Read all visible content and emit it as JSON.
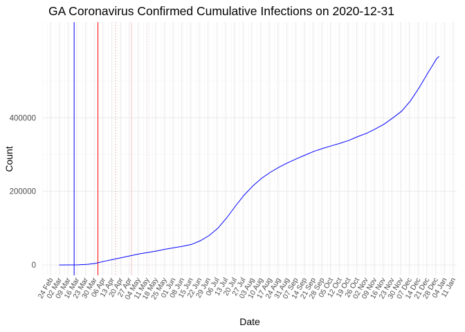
{
  "chart_data": {
    "type": "line",
    "title": "GA Coronavirus Confirmed Cumulative Infections on 2020-12-31",
    "xlabel": "Date",
    "ylabel": "Count",
    "x_axis_type": "date",
    "xlim": [
      "2020-02-18",
      "2021-01-14"
    ],
    "ylim": [
      -28000,
      660000
    ],
    "y_ticks": [
      0,
      200000,
      400000
    ],
    "y_tick_labels": [
      "0",
      "200000",
      "400000"
    ],
    "x_ticks": [
      "2020-02-24",
      "2020-03-02",
      "2020-03-09",
      "2020-03-16",
      "2020-03-23",
      "2020-03-30",
      "2020-04-06",
      "2020-04-13",
      "2020-04-20",
      "2020-04-27",
      "2020-05-04",
      "2020-05-11",
      "2020-05-18",
      "2020-05-25",
      "2020-06-01",
      "2020-06-08",
      "2020-06-15",
      "2020-06-22",
      "2020-06-29",
      "2020-07-06",
      "2020-07-13",
      "2020-07-20",
      "2020-07-27",
      "2020-08-03",
      "2020-08-10",
      "2020-08-17",
      "2020-08-24",
      "2020-08-31",
      "2020-09-07",
      "2020-09-14",
      "2020-09-21",
      "2020-09-28",
      "2020-10-05",
      "2020-10-12",
      "2020-10-19",
      "2020-10-26",
      "2020-11-02",
      "2020-11-09",
      "2020-11-16",
      "2020-11-23",
      "2020-11-30",
      "2020-12-07",
      "2020-12-14",
      "2020-12-21",
      "2020-12-28",
      "2021-01-04",
      "2021-01-11"
    ],
    "x_tick_labels": [
      "24 Feb",
      "02 Mar",
      "09 Mar",
      "16 Mar",
      "23 Mar",
      "30 Mar",
      "06 Apr",
      "13 Apr",
      "20 Apr",
      "27 Apr",
      "04 May",
      "11 May",
      "18 May",
      "25 May",
      "01 Jun",
      "08 Jun",
      "15 Jun",
      "22 Jun",
      "29 Jun",
      "06 Jul",
      "13 Jul",
      "20 Jul",
      "27 Jul",
      "03 Aug",
      "10 Aug",
      "17 Aug",
      "24 Aug",
      "31 Aug",
      "07 Sep",
      "14 Sep",
      "21 Sep",
      "28 Sep",
      "05 Oct",
      "12 Oct",
      "19 Oct",
      "26 Oct",
      "02 Nov",
      "09 Nov",
      "16 Nov",
      "23 Nov",
      "30 Nov",
      "07 Dec",
      "14 Dec",
      "21 Dec",
      "28 Dec",
      "04 Jan",
      "11 Jan"
    ],
    "grid": true,
    "series": [
      {
        "color": "#0000ff",
        "points": [
          [
            "2020-03-02",
            0
          ],
          [
            "2020-03-10",
            200
          ],
          [
            "2020-03-17",
            400
          ],
          [
            "2020-03-24",
            1500
          ],
          [
            "2020-03-31",
            4500
          ],
          [
            "2020-04-07",
            10000
          ],
          [
            "2020-04-14",
            15000
          ],
          [
            "2020-04-21",
            20000
          ],
          [
            "2020-04-28",
            25000
          ],
          [
            "2020-05-05",
            30000
          ],
          [
            "2020-05-12",
            34000
          ],
          [
            "2020-05-19",
            38000
          ],
          [
            "2020-05-26",
            43000
          ],
          [
            "2020-06-02",
            47000
          ],
          [
            "2020-06-09",
            51000
          ],
          [
            "2020-06-16",
            56000
          ],
          [
            "2020-06-23",
            66000
          ],
          [
            "2020-06-30",
            80000
          ],
          [
            "2020-07-07",
            100000
          ],
          [
            "2020-07-14",
            128000
          ],
          [
            "2020-07-21",
            160000
          ],
          [
            "2020-07-28",
            190000
          ],
          [
            "2020-08-04",
            215000
          ],
          [
            "2020-08-11",
            236000
          ],
          [
            "2020-08-18",
            252000
          ],
          [
            "2020-08-25",
            266000
          ],
          [
            "2020-09-01",
            278000
          ],
          [
            "2020-09-08",
            289000
          ],
          [
            "2020-09-15",
            299000
          ],
          [
            "2020-09-22",
            309000
          ],
          [
            "2020-09-29",
            317000
          ],
          [
            "2020-10-06",
            324000
          ],
          [
            "2020-10-13",
            331000
          ],
          [
            "2020-10-20",
            339000
          ],
          [
            "2020-10-27",
            349000
          ],
          [
            "2020-11-03",
            358000
          ],
          [
            "2020-11-10",
            370000
          ],
          [
            "2020-11-17",
            383000
          ],
          [
            "2020-11-24",
            400000
          ],
          [
            "2020-12-01",
            418000
          ],
          [
            "2020-12-08",
            446000
          ],
          [
            "2020-12-15",
            482000
          ],
          [
            "2020-12-22",
            522000
          ],
          [
            "2020-12-29",
            561000
          ],
          [
            "2020-12-31",
            567000
          ]
        ]
      }
    ],
    "reference_lines": [
      {
        "date": "2020-03-14",
        "color": "#0000ff",
        "style": "solid"
      },
      {
        "date": "2020-04-02",
        "color": "#ff0000",
        "style": "solid"
      },
      {
        "date": "2020-04-16",
        "color": "#e8a0a0",
        "style": "dotted"
      },
      {
        "date": "2020-04-29",
        "color": "#f4c8c8",
        "style": "solid"
      },
      {
        "date": "2020-05-13",
        "color": "#f8dada",
        "style": "dotted"
      }
    ]
  }
}
